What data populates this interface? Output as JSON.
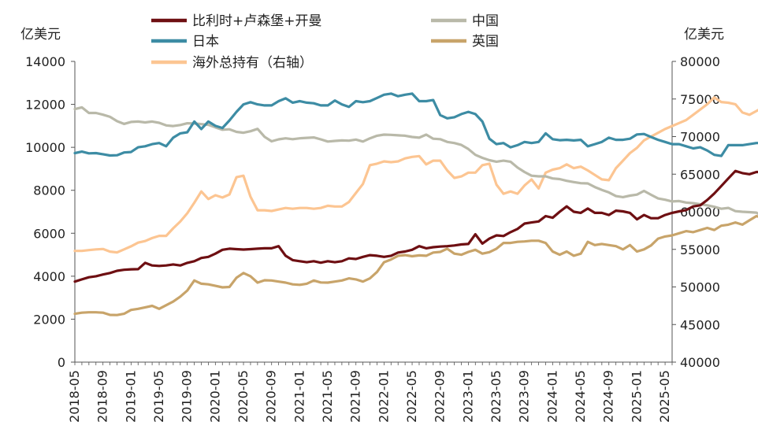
{
  "chart_data": {
    "type": "line",
    "left_unit": "亿美元",
    "right_unit": "亿美元",
    "left_axis": {
      "min": 0,
      "max": 14000,
      "step": 2000
    },
    "right_axis": {
      "min": 40000,
      "max": 80000,
      "step": 5000
    },
    "x_tick_labels": [
      "2018-05",
      "2018-09",
      "2019-01",
      "2019-05",
      "2019-09",
      "2020-01",
      "2020-05",
      "2020-09",
      "2021-01",
      "2021-05",
      "2021-09",
      "2022-01",
      "2022-05",
      "2022-09",
      "2023-01",
      "2023-05",
      "2023-09",
      "2024-01",
      "2024-05",
      "2024-09",
      "2025-01",
      "2025-05"
    ],
    "x_start": "2018-05",
    "x_end": "2025-06",
    "legend_position": "top",
    "series": [
      {
        "name": "比利时+卢森堡+开曼",
        "color": "#6e0f12",
        "axis": "left",
        "values": [
          3750,
          3850,
          3950,
          4000,
          4080,
          4150,
          4250,
          4300,
          4320,
          4330,
          4620,
          4500,
          4480,
          4500,
          4550,
          4500,
          4620,
          4700,
          4850,
          4900,
          5050,
          5230,
          5280,
          5260,
          5240,
          5260,
          5280,
          5300,
          5300,
          5400,
          4950,
          4750,
          4700,
          4650,
          4700,
          4630,
          4700,
          4650,
          4700,
          4830,
          4800,
          4900,
          4980,
          4950,
          4900,
          4950,
          5100,
          5150,
          5230,
          5400,
          5300,
          5350,
          5380,
          5400,
          5430,
          5480,
          5500,
          5950,
          5520,
          5750,
          5900,
          5870,
          6050,
          6200,
          6450,
          6500,
          6550,
          6800,
          6720,
          7000,
          7250,
          7000,
          6950,
          7150,
          6950,
          6950,
          6850,
          7050,
          7020,
          6950,
          6650,
          6850,
          6700,
          6700,
          6850,
          6950,
          7020,
          7080,
          7250,
          7300,
          7550,
          7850,
          8200,
          8550,
          8900,
          8800,
          8750,
          8850,
          8850,
          9250,
          9650,
          9550,
          9500,
          9500
        ]
      },
      {
        "name": "中国",
        "color": "#b9b9a9",
        "axis": "left",
        "values": [
          11780,
          11860,
          11600,
          11600,
          11520,
          11420,
          11220,
          11090,
          11180,
          11200,
          11160,
          11200,
          11140,
          11020,
          10990,
          11040,
          11120,
          11110,
          11080,
          11050,
          10930,
          10820,
          10840,
          10720,
          10680,
          10750,
          10860,
          10490,
          10280,
          10370,
          10420,
          10380,
          10420,
          10440,
          10460,
          10370,
          10270,
          10300,
          10320,
          10310,
          10360,
          10270,
          10420,
          10540,
          10590,
          10580,
          10560,
          10540,
          10480,
          10450,
          10590,
          10400,
          10380,
          10250,
          10200,
          10110,
          9920,
          9650,
          9510,
          9400,
          9330,
          9380,
          9330,
          9060,
          8850,
          8680,
          8650,
          8650,
          8550,
          8520,
          8440,
          8380,
          8330,
          8320,
          8150,
          8020,
          7900,
          7730,
          7680,
          7750,
          7800,
          7970,
          7790,
          7620,
          7560,
          7480,
          7500,
          7430,
          7400,
          7350,
          7300,
          7230,
          7140,
          7180,
          7030,
          7000,
          6980,
          6960,
          6760,
          6850,
          6780,
          6760,
          6760,
          6760
        ]
      },
      {
        "name": "日本",
        "color": "#3d8ca4",
        "axis": "left",
        "values": [
          9730,
          9800,
          9720,
          9730,
          9680,
          9620,
          9630,
          9760,
          9780,
          10000,
          10050,
          10150,
          10200,
          10050,
          10450,
          10650,
          10700,
          11200,
          10850,
          11200,
          11000,
          10900,
          11250,
          11650,
          12000,
          12100,
          12000,
          11950,
          11950,
          12150,
          12280,
          12080,
          12150,
          12080,
          12050,
          11950,
          11950,
          12180,
          12000,
          11880,
          12150,
          12100,
          12150,
          12300,
          12450,
          12500,
          12380,
          12450,
          12500,
          12150,
          12150,
          12200,
          11500,
          11350,
          11400,
          11550,
          11650,
          11550,
          11200,
          10400,
          10150,
          10200,
          10000,
          10100,
          10250,
          10200,
          10250,
          10650,
          10380,
          10330,
          10350,
          10320,
          10350,
          10050,
          10150,
          10250,
          10450,
          10350,
          10350,
          10400,
          10600,
          10620,
          10480,
          10350,
          10250,
          10150,
          10150,
          10050,
          9950,
          10000,
          9850,
          9650,
          9600,
          10100,
          10100,
          10100,
          10150,
          10200,
          10200,
          10200,
          10200,
          10200,
          10200,
          10250
        ]
      },
      {
        "name": "英国",
        "color": "#c8a46a",
        "axis": "left",
        "values": [
          2250,
          2300,
          2320,
          2320,
          2300,
          2200,
          2190,
          2250,
          2430,
          2480,
          2550,
          2620,
          2480,
          2650,
          2820,
          3050,
          3330,
          3800,
          3650,
          3620,
          3550,
          3480,
          3500,
          3930,
          4150,
          4000,
          3700,
          3810,
          3800,
          3750,
          3700,
          3620,
          3600,
          3650,
          3800,
          3710,
          3700,
          3750,
          3800,
          3900,
          3850,
          3750,
          3900,
          4200,
          4650,
          4780,
          4950,
          4980,
          4930,
          4970,
          4950,
          5100,
          5130,
          5280,
          5050,
          5000,
          5130,
          5230,
          5050,
          5120,
          5280,
          5550,
          5550,
          5600,
          5620,
          5650,
          5650,
          5550,
          5150,
          5000,
          5150,
          4950,
          5050,
          5600,
          5450,
          5500,
          5450,
          5400,
          5250,
          5450,
          5150,
          5250,
          5430,
          5750,
          5850,
          5900,
          6000,
          6100,
          6050,
          6150,
          6250,
          6150,
          6350,
          6400,
          6500,
          6400,
          6600,
          6800,
          6700,
          6650,
          6750,
          6950,
          7000,
          7850
        ]
      },
      {
        "name": "海外总持有（右轴）",
        "color": "#fcc592",
        "axis": "right",
        "values": [
          54800,
          54800,
          54900,
          55000,
          55050,
          54700,
          54600,
          55000,
          55400,
          55900,
          56100,
          56500,
          56800,
          56800,
          57800,
          58700,
          59800,
          61200,
          62700,
          61700,
          62200,
          61900,
          62300,
          64600,
          64800,
          62000,
          60200,
          60200,
          60100,
          60300,
          60500,
          60400,
          60500,
          60500,
          60400,
          60500,
          60800,
          60700,
          60700,
          61300,
          62500,
          63700,
          66200,
          66400,
          66700,
          66600,
          66700,
          67100,
          67300,
          67400,
          66300,
          66800,
          66800,
          65500,
          64500,
          64700,
          65200,
          65200,
          66200,
          66400,
          63600,
          62400,
          62700,
          62400,
          63500,
          64300,
          63100,
          65200,
          65600,
          65800,
          66300,
          65800,
          66000,
          65500,
          64900,
          64300,
          64200,
          65800,
          66800,
          67800,
          68500,
          69500,
          70000,
          70500,
          71000,
          71400,
          71800,
          72200,
          72900,
          73600,
          74300,
          75200,
          74600,
          74500,
          74300,
          73200,
          72900,
          73400,
          73900,
          74900,
          76200,
          76100,
          76600,
          77100
        ]
      }
    ]
  }
}
